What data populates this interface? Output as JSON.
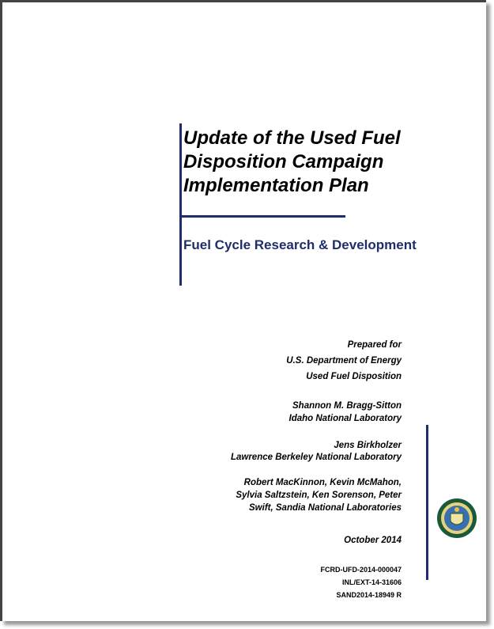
{
  "title": {
    "lines": [
      "Update of the Used Fuel",
      "Disposition Campaign",
      "Implementation Plan"
    ]
  },
  "subtitle": "Fuel Cycle Research & Development",
  "prepared_for": [
    "Prepared for",
    "U.S. Department of Energy",
    "Used Fuel Disposition"
  ],
  "authors": [
    [
      "Shannon M. Bragg-Sitton",
      "Idaho National Laboratory"
    ],
    [
      "Jens Birkholzer",
      "Lawrence Berkeley National Laboratory"
    ],
    [
      "Robert MacKinnon, Kevin McMahon,",
      "Sylvia Saltzstein, Ken Sorenson, Peter",
      "Swift, Sandia National Laboratories"
    ]
  ],
  "date": "October 2014",
  "report_numbers": [
    "FCRD-UFD-2014-000047",
    "INL/EXT-14-31606",
    "SAND2014-18949 R"
  ]
}
